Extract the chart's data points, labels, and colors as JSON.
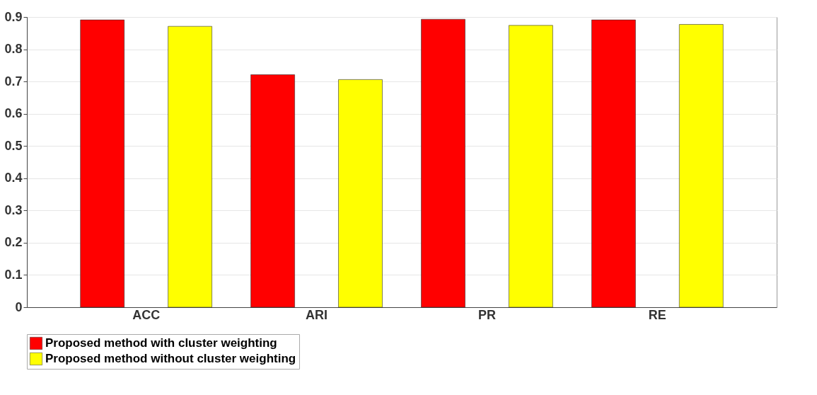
{
  "chart_data": {
    "type": "bar",
    "categories": [
      "ACC",
      "ARI",
      "PR",
      "RE"
    ],
    "series": [
      {
        "name": "Proposed method with cluster weighting",
        "color": "#ff0000",
        "values": [
          0.891,
          0.721,
          0.893,
          0.891
        ]
      },
      {
        "name": "Proposed method without cluster weighting",
        "color": "#ffff00",
        "values": [
          0.871,
          0.706,
          0.874,
          0.877
        ]
      }
    ],
    "ylim": [
      0,
      0.9
    ],
    "yticks": [
      0,
      0.1,
      0.2,
      0.3,
      0.4,
      0.5,
      0.6,
      0.7,
      0.8,
      0.9
    ],
    "grid": "y",
    "legend": "bottom"
  }
}
